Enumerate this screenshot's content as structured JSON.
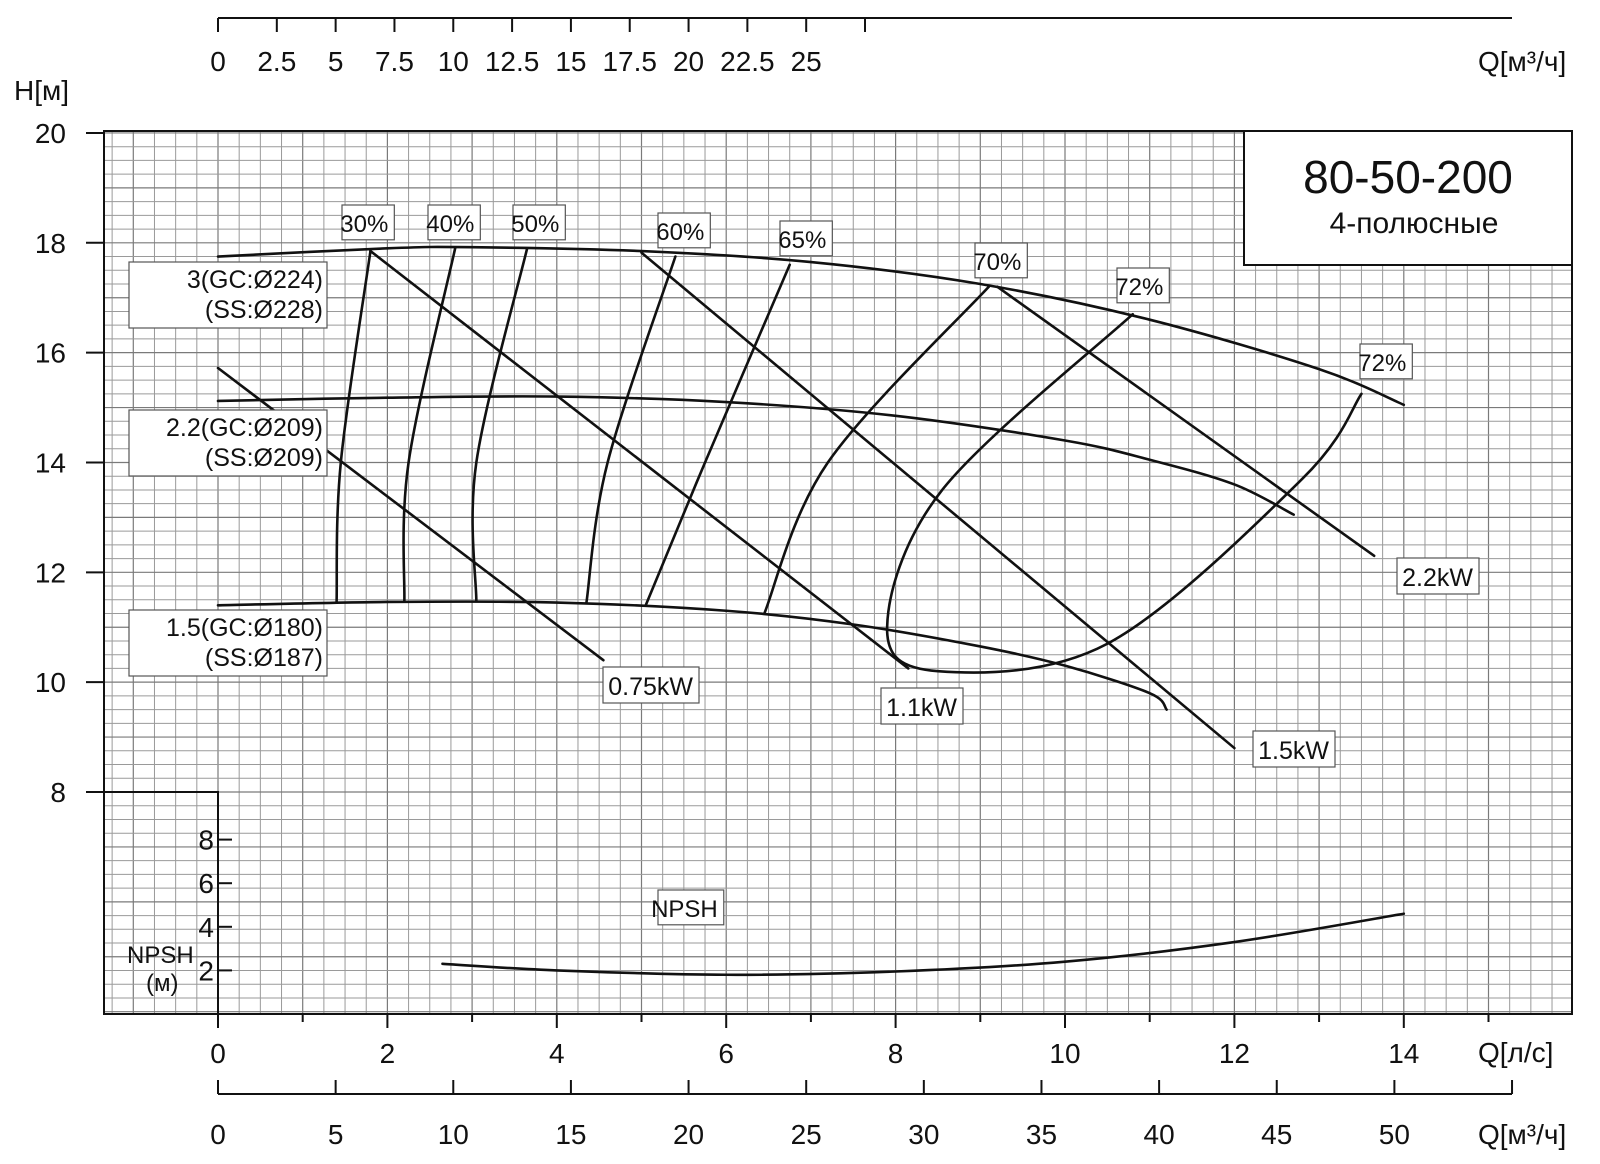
{
  "chart_data": {
    "type": "line",
    "title": "80-50-200",
    "subtitle": "4-полюсные",
    "y_axis_label": "H[м]",
    "y_range": [
      8,
      20
    ],
    "y_ticks": [
      "20",
      "18",
      "16",
      "14",
      "12",
      "10",
      "8"
    ],
    "x_axis_label": "Q[л/с]",
    "x_range": [
      0,
      14
    ],
    "x_ticks": [
      "0",
      "2",
      "4",
      "6",
      "8",
      "10",
      "12",
      "14"
    ],
    "top_axis_label": "Q[м³/ч]",
    "top_ticks": [
      "0",
      "2.5",
      "5",
      "7.5",
      "10",
      "12.5",
      "15",
      "17.5",
      "20",
      "22.5",
      "25"
    ],
    "bottom_axis_label": "Q[м³/ч]",
    "bottom_ticks": [
      "0",
      "5",
      "10",
      "15",
      "20",
      "25",
      "30",
      "35",
      "40",
      "45",
      "50"
    ],
    "npsh_axis_label_1": "NPSH",
    "npsh_axis_label_2": "(м)",
    "npsh_ticks": [
      "8",
      "6",
      "4",
      "2"
    ],
    "npsh_range": [
      0,
      10
    ],
    "grid": true,
    "impeller_curves": [
      {
        "label_line1": "3(GC:Ø224)",
        "label_line2": "(SS:Ø228)",
        "points": [
          [
            0,
            17.75
          ],
          [
            2,
            17.9
          ],
          [
            3,
            17.92
          ],
          [
            5,
            17.85
          ],
          [
            7,
            17.65
          ],
          [
            9,
            17.25
          ],
          [
            11,
            16.6
          ],
          [
            13,
            15.7
          ],
          [
            14,
            15.05
          ]
        ]
      },
      {
        "label_line1": "2.2(GC:Ø209)",
        "label_line2": "(SS:Ø209)",
        "points": [
          [
            0,
            15.12
          ],
          [
            2,
            15.18
          ],
          [
            4,
            15.2
          ],
          [
            6,
            15.1
          ],
          [
            8,
            14.85
          ],
          [
            10,
            14.4
          ],
          [
            11,
            14.05
          ],
          [
            12,
            13.6
          ],
          [
            12.7,
            13.05
          ]
        ]
      },
      {
        "label_line1": "1.5(GC:Ø180)",
        "label_line2": "(SS:Ø187)",
        "points": [
          [
            0,
            11.4
          ],
          [
            2,
            11.46
          ],
          [
            4,
            11.45
          ],
          [
            6,
            11.3
          ],
          [
            7.5,
            11.05
          ],
          [
            9,
            10.65
          ],
          [
            10,
            10.3
          ],
          [
            11,
            9.8
          ],
          [
            11.2,
            9.5
          ]
        ]
      }
    ],
    "power_lines": [
      {
        "label": "0.75kW",
        "points": [
          [
            0,
            15.72
          ],
          [
            4.55,
            10.4
          ]
        ]
      },
      {
        "label": "1.1kW",
        "points": [
          [
            1.8,
            17.85
          ],
          [
            8.15,
            10.25
          ]
        ]
      },
      {
        "label": "1.5kW",
        "points": [
          [
            5,
            17.82
          ],
          [
            12,
            8.8
          ]
        ]
      },
      {
        "label": "2.2kW",
        "points": [
          [
            9.2,
            17.2
          ],
          [
            13.65,
            12.3
          ]
        ]
      }
    ],
    "efficiency_curves": [
      {
        "label": "30%",
        "points": [
          [
            1.8,
            17.85
          ],
          [
            1.45,
            14.0
          ],
          [
            1.4,
            11.45
          ]
        ]
      },
      {
        "label": "40%",
        "points": [
          [
            2.8,
            17.9
          ],
          [
            2.25,
            14.0
          ],
          [
            2.2,
            11.47
          ]
        ]
      },
      {
        "label": "50%",
        "points": [
          [
            3.65,
            17.9
          ],
          [
            3.05,
            14.0
          ],
          [
            3.05,
            11.48
          ]
        ]
      },
      {
        "label": "60%",
        "points": [
          [
            5.4,
            17.75
          ],
          [
            4.6,
            14.0
          ],
          [
            4.35,
            11.45
          ]
        ]
      },
      {
        "label": "65%",
        "points": [
          [
            6.75,
            17.6
          ],
          [
            5.75,
            14.0
          ],
          [
            5.05,
            11.4
          ]
        ]
      },
      {
        "label": "70%",
        "points": [
          [
            9.1,
            17.2
          ],
          [
            7.2,
            14.0
          ],
          [
            6.45,
            11.25
          ]
        ]
      },
      {
        "label": "72%",
        "points": [
          [
            10.8,
            16.7
          ],
          [
            8.55,
            13.5
          ],
          [
            7.9,
            11.0
          ],
          [
            8.5,
            10.2
          ],
          [
            10.5,
            10.7
          ],
          [
            12.8,
            13.7
          ],
          [
            13.5,
            15.25
          ]
        ]
      }
    ],
    "efficiency_labels": [
      "30%",
      "40%",
      "50%",
      "60%",
      "65%",
      "70%",
      "72%",
      "72%"
    ],
    "npsh_curve": {
      "label": "NPSH",
      "points": [
        [
          2.65,
          2.3
        ],
        [
          4,
          2.0
        ],
        [
          6,
          1.8
        ],
        [
          8,
          1.95
        ],
        [
          10,
          2.4
        ],
        [
          12,
          3.3
        ],
        [
          14,
          4.6
        ]
      ]
    }
  }
}
